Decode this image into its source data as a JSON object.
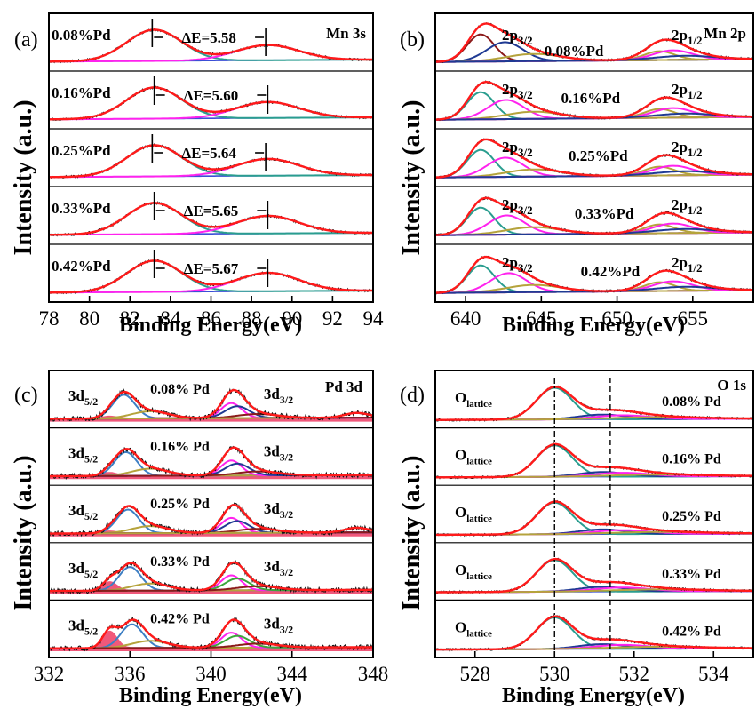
{
  "chart_data": [
    {
      "type": "line",
      "panel": "(a)",
      "title": "Mn 3s",
      "xlabel": "Binding Energy(eV)",
      "ylabel": "Intensity (a.u.)",
      "xlim": [
        78,
        94
      ],
      "xticks": [
        78,
        80,
        82,
        84,
        86,
        88,
        90,
        92,
        94
      ],
      "samples": [
        {
          "label": "0.08%Pd",
          "annotation": "ΔE=5.58",
          "peak1": 83.1,
          "peak2": 88.7
        },
        {
          "label": "0.16%Pd",
          "annotation": "ΔE=5.60",
          "peak1": 83.2,
          "peak2": 88.8
        },
        {
          "label": "0.25%Pd",
          "annotation": "ΔE=5.64",
          "peak1": 83.1,
          "peak2": 88.7
        },
        {
          "label": "0.33%Pd",
          "annotation": "ΔE=5.65",
          "peak1": 83.2,
          "peak2": 88.8
        },
        {
          "label": "0.42%Pd",
          "annotation": "ΔE=5.67",
          "peak1": 83.2,
          "peak2": 88.8
        }
      ]
    },
    {
      "type": "line",
      "panel": "(b)",
      "title": "Mn 2p",
      "xlabel": "Binding Energy(eV)",
      "ylabel": "Intensity (a.u.)",
      "xlim": [
        638,
        659
      ],
      "xticks": [
        640,
        645,
        650,
        655
      ],
      "peak_label_main": "2p",
      "peak_label_sub1": "3/2",
      "peak_label_sub2": "1/2",
      "samples": [
        {
          "label": "0.08%Pd"
        },
        {
          "label": "0.16%Pd"
        },
        {
          "label": "0.25%Pd"
        },
        {
          "label": "0.33%Pd"
        },
        {
          "label": "0.42%Pd"
        }
      ]
    },
    {
      "type": "line",
      "panel": "(c)",
      "title": "Pd 3d",
      "xlabel": "Binding Energy(eV)",
      "ylabel": "Intensity (a.u.)",
      "xlim": [
        332,
        348
      ],
      "xticks": [
        332,
        336,
        340,
        344,
        348
      ],
      "peak_label_main": "3d",
      "peak_label_sub1": "5/2",
      "peak_label_sub2": "3/2",
      "samples": [
        {
          "label": "0.08% Pd"
        },
        {
          "label": "0.16% Pd"
        },
        {
          "label": "0.25% Pd"
        },
        {
          "label": "0.33% Pd"
        },
        {
          "label": "0.42% Pd"
        }
      ]
    },
    {
      "type": "line",
      "panel": "(d)",
      "title": "O 1s",
      "xlabel": "Binding Energy(eV)",
      "ylabel": "Intensity (a.u.)",
      "xlim": [
        527,
        535
      ],
      "xticks": [
        528,
        530,
        532,
        534
      ],
      "reference_lines": [
        530.0,
        531.4
      ],
      "peak_label_main": "O",
      "peak_label_sub": "lattice",
      "samples": [
        {
          "label": "0.08% Pd"
        },
        {
          "label": "0.16% Pd"
        },
        {
          "label": "0.25% Pd"
        },
        {
          "label": "0.33% Pd"
        },
        {
          "label": "0.42% Pd"
        }
      ]
    }
  ]
}
